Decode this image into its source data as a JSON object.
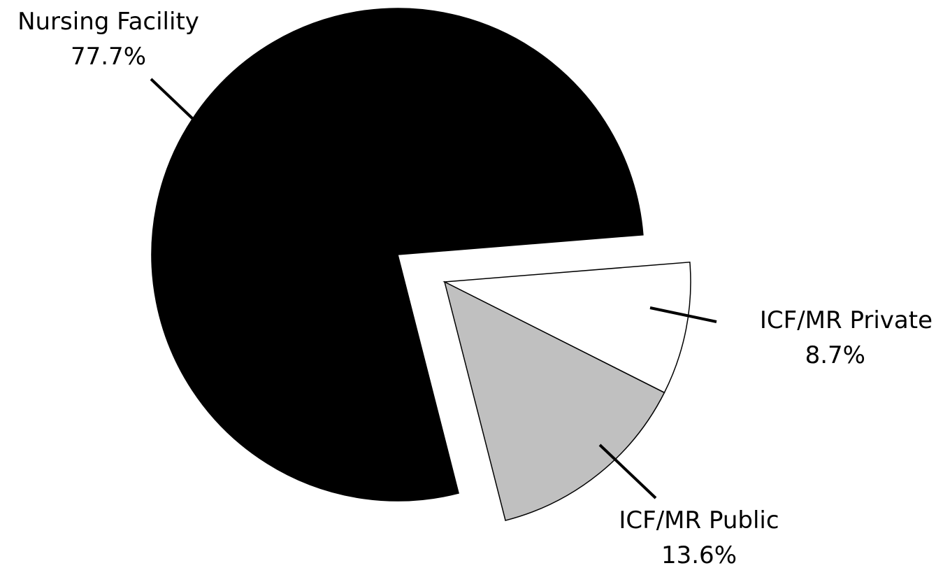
{
  "chart_data": {
    "type": "pie",
    "title": "",
    "exploded": true,
    "slices": [
      {
        "label": "Nursing Facility",
        "value": 77.7,
        "display": "77.7%",
        "color": "#000000"
      },
      {
        "label": "ICF/MR Private",
        "value": 8.7,
        "display": "8.7%",
        "color": "#ffffff"
      },
      {
        "label": "ICF/MR Public",
        "value": 13.6,
        "display": "13.6%",
        "color": "#c0c0c0"
      }
    ]
  }
}
